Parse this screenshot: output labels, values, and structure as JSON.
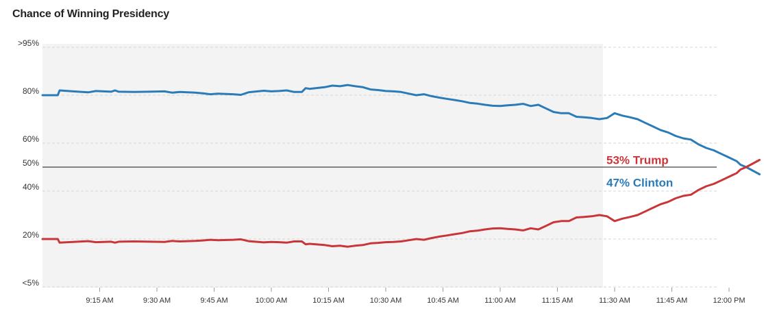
{
  "chart_data": {
    "type": "line",
    "title": "Chance of Winning Presidency",
    "xlabel": "",
    "ylabel": "",
    "y_ticks": [
      {
        "label": ">95%",
        "value": 95
      },
      {
        "label": "80%",
        "value": 80
      },
      {
        "label": "60%",
        "value": 60
      },
      {
        "label": "50%",
        "value": 50
      },
      {
        "label": "40%",
        "value": 40
      },
      {
        "label": "20%",
        "value": 20
      },
      {
        "label": "<5%",
        "value": 0
      }
    ],
    "x_ticks": [
      "9:15 AM",
      "9:30 AM",
      "9:45 AM",
      "10:00 AM",
      "10:15 AM",
      "10:30 AM",
      "10:45 AM",
      "11:00 AM",
      "11:15 AM",
      "11:30 AM",
      "11:45 AM",
      "12:00 PM"
    ],
    "x_unit": "minutes after 9:00 AM",
    "xlim": [
      0,
      180
    ],
    "shaded_until": 150,
    "grid": "dashed horizontal",
    "reference_line": 50,
    "series": [
      {
        "name": "Clinton",
        "color": "#2b7bb9",
        "end_label": "47% Clinton",
        "points": [
          [
            0,
            80
          ],
          [
            4,
            80
          ],
          [
            4.5,
            81.5
          ],
          [
            8,
            81.2
          ],
          [
            12,
            80.9
          ],
          [
            14,
            81.3
          ],
          [
            18,
            81.1
          ],
          [
            19,
            81.5
          ],
          [
            20,
            81.1
          ],
          [
            24,
            81
          ],
          [
            28,
            81.1
          ],
          [
            32,
            81.2
          ],
          [
            34,
            80.8
          ],
          [
            36,
            81
          ],
          [
            40,
            80.8
          ],
          [
            42,
            80.6
          ],
          [
            44,
            80.3
          ],
          [
            46,
            80.5
          ],
          [
            50,
            80.3
          ],
          [
            52,
            80.1
          ],
          [
            54,
            80.9
          ],
          [
            58,
            81.4
          ],
          [
            60,
            81.2
          ],
          [
            62,
            81.3
          ],
          [
            64,
            81.5
          ],
          [
            66,
            81
          ],
          [
            68,
            81
          ],
          [
            69,
            82.2
          ],
          [
            70,
            82
          ],
          [
            74,
            82.5
          ],
          [
            76,
            83
          ],
          [
            78,
            82.8
          ],
          [
            80,
            83.2
          ],
          [
            82,
            82.8
          ],
          [
            84,
            82.5
          ],
          [
            86,
            81.8
          ],
          [
            88,
            81.6
          ],
          [
            90,
            81.3
          ],
          [
            92,
            81.2
          ],
          [
            94,
            81
          ],
          [
            96,
            80.5
          ],
          [
            98,
            80
          ],
          [
            100,
            80.3
          ],
          [
            102,
            79.6
          ],
          [
            104,
            79
          ],
          [
            106,
            78.5
          ],
          [
            108,
            78
          ],
          [
            110,
            77.5
          ],
          [
            112,
            76.8
          ],
          [
            114,
            76.5
          ],
          [
            116,
            76
          ],
          [
            118,
            75.6
          ],
          [
            120,
            75.5
          ],
          [
            122,
            75.8
          ],
          [
            124,
            76
          ],
          [
            126,
            76.4
          ],
          [
            128,
            75.5
          ],
          [
            130,
            76
          ],
          [
            132,
            74.5
          ],
          [
            134,
            73
          ],
          [
            136,
            72.5
          ],
          [
            138,
            72.5
          ],
          [
            140,
            71
          ],
          [
            142,
            70.8
          ],
          [
            144,
            70.5
          ],
          [
            146,
            70
          ],
          [
            148,
            70.5
          ],
          [
            150,
            72.5
          ],
          [
            152,
            71.5
          ],
          [
            154,
            70.8
          ],
          [
            156,
            70
          ],
          [
            158,
            68.5
          ],
          [
            160,
            67
          ],
          [
            162,
            65.5
          ],
          [
            164,
            64.5
          ],
          [
            166,
            63
          ],
          [
            168,
            62
          ],
          [
            170,
            61.5
          ],
          [
            172,
            59.5
          ],
          [
            174,
            58
          ],
          [
            176,
            57
          ],
          [
            178,
            55.5
          ],
          [
            180,
            54
          ],
          [
            182,
            52.5
          ],
          [
            183,
            51
          ],
          [
            184.5,
            50
          ],
          [
            186,
            48.7
          ],
          [
            188,
            47
          ]
        ]
      },
      {
        "name": "Trump",
        "color": "#c93538",
        "end_label": "53% Trump",
        "points": [
          [
            0,
            20
          ],
          [
            4,
            20
          ],
          [
            4.5,
            18.5
          ],
          [
            8,
            18.8
          ],
          [
            12,
            19.1
          ],
          [
            14,
            18.7
          ],
          [
            18,
            18.9
          ],
          [
            19,
            18.5
          ],
          [
            20,
            18.9
          ],
          [
            24,
            19
          ],
          [
            28,
            18.9
          ],
          [
            32,
            18.8
          ],
          [
            34,
            19.2
          ],
          [
            36,
            19
          ],
          [
            40,
            19.2
          ],
          [
            42,
            19.4
          ],
          [
            44,
            19.7
          ],
          [
            46,
            19.5
          ],
          [
            50,
            19.7
          ],
          [
            52,
            19.9
          ],
          [
            54,
            19.1
          ],
          [
            58,
            18.6
          ],
          [
            60,
            18.8
          ],
          [
            62,
            18.7
          ],
          [
            64,
            18.5
          ],
          [
            66,
            19
          ],
          [
            68,
            19
          ],
          [
            69,
            17.8
          ],
          [
            70,
            18
          ],
          [
            74,
            17.5
          ],
          [
            76,
            17
          ],
          [
            78,
            17.2
          ],
          [
            80,
            16.8
          ],
          [
            82,
            17.2
          ],
          [
            84,
            17.5
          ],
          [
            86,
            18.2
          ],
          [
            88,
            18.4
          ],
          [
            90,
            18.7
          ],
          [
            92,
            18.8
          ],
          [
            94,
            19
          ],
          [
            96,
            19.5
          ],
          [
            98,
            20
          ],
          [
            100,
            19.7
          ],
          [
            102,
            20.4
          ],
          [
            104,
            21
          ],
          [
            106,
            21.5
          ],
          [
            108,
            22
          ],
          [
            110,
            22.5
          ],
          [
            112,
            23.2
          ],
          [
            114,
            23.5
          ],
          [
            116,
            24
          ],
          [
            118,
            24.4
          ],
          [
            120,
            24.5
          ],
          [
            122,
            24.2
          ],
          [
            124,
            24
          ],
          [
            126,
            23.6
          ],
          [
            128,
            24.5
          ],
          [
            130,
            24
          ],
          [
            132,
            25.5
          ],
          [
            134,
            27
          ],
          [
            136,
            27.5
          ],
          [
            138,
            27.5
          ],
          [
            140,
            29
          ],
          [
            142,
            29.2
          ],
          [
            144,
            29.5
          ],
          [
            146,
            30
          ],
          [
            148,
            29.5
          ],
          [
            150,
            27.5
          ],
          [
            152,
            28.5
          ],
          [
            154,
            29.2
          ],
          [
            156,
            30
          ],
          [
            158,
            31.5
          ],
          [
            160,
            33
          ],
          [
            162,
            34.5
          ],
          [
            164,
            35.5
          ],
          [
            166,
            37
          ],
          [
            168,
            38
          ],
          [
            170,
            38.5
          ],
          [
            172,
            40.5
          ],
          [
            174,
            42
          ],
          [
            176,
            43
          ],
          [
            178,
            44.5
          ],
          [
            180,
            46
          ],
          [
            182,
            47.5
          ],
          [
            183,
            49
          ],
          [
            184.5,
            50
          ],
          [
            186,
            51.3
          ],
          [
            188,
            53
          ]
        ]
      }
    ]
  }
}
